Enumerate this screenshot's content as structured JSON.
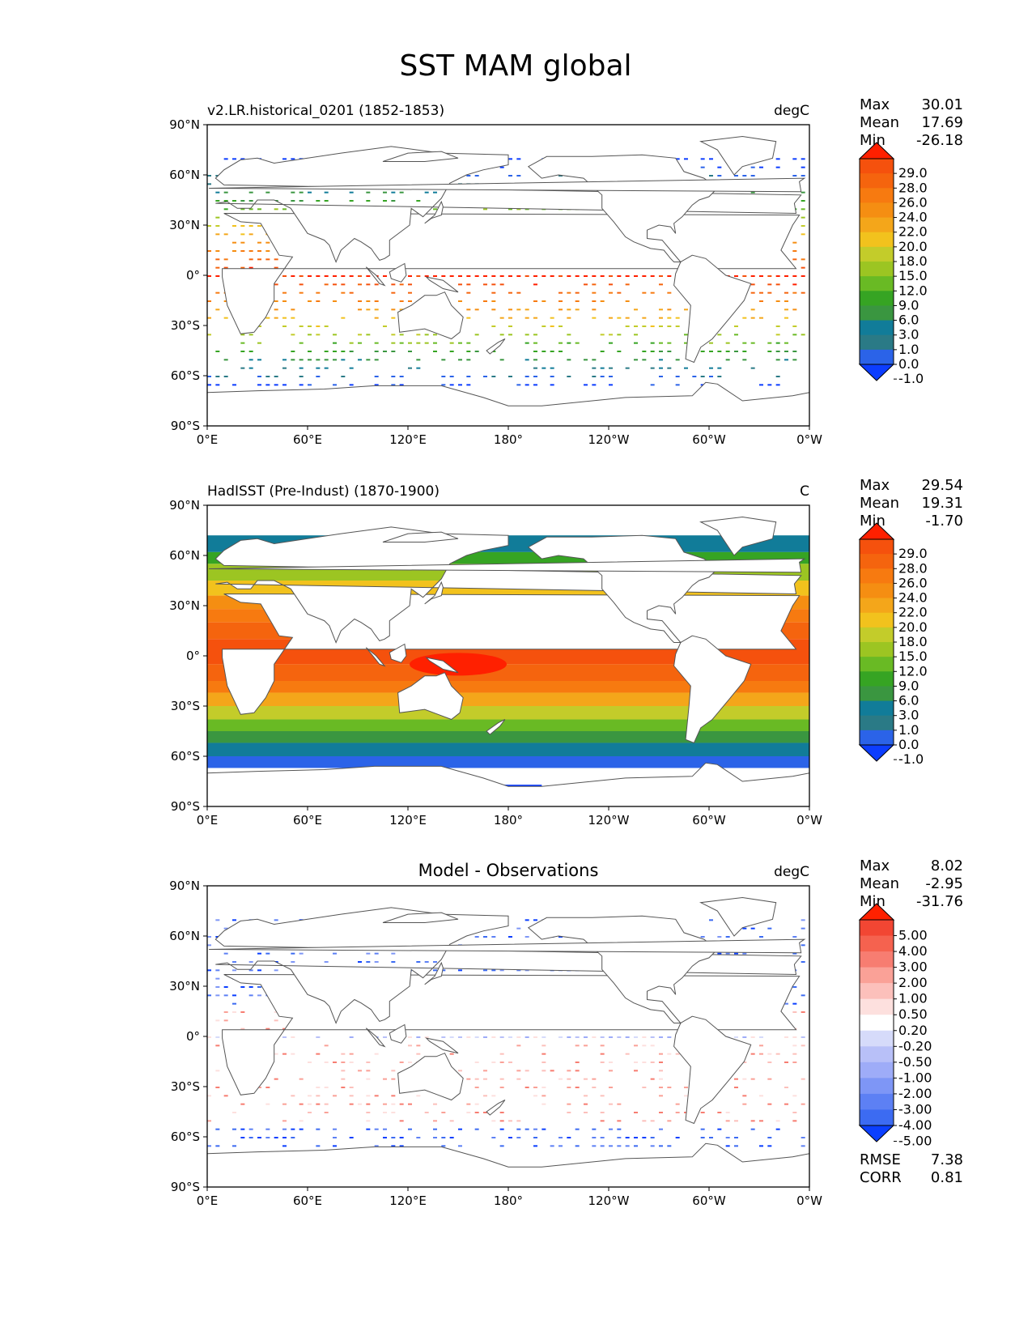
{
  "title": "SST MAM global",
  "x_ticks": [
    "0°E",
    "60°E",
    "120°E",
    "180°",
    "120°W",
    "60°W",
    "0°W"
  ],
  "y_ticks": [
    "90°N",
    "60°N",
    "30°N",
    "0°",
    "30°S",
    "60°S",
    "90°S"
  ],
  "colors": {
    "abs": [
      "#0c3dff",
      "#2b63e8",
      "#2a7a86",
      "#117c99",
      "#3a9640",
      "#36a423",
      "#69ba24",
      "#9cc522",
      "#c3cc2a",
      "#f2c21d",
      "#f4a61a",
      "#f58e12",
      "#f77a10",
      "#f5640e",
      "#f5510d",
      "#ff2000"
    ],
    "diff": [
      "#0b3fff",
      "#3c6bf2",
      "#5d80f4",
      "#7e96f6",
      "#9eacf8",
      "#b8c0f8",
      "#d6dbfa",
      "#ffffff",
      "#fde0de",
      "#fcc0bb",
      "#faa197",
      "#f77d71",
      "#f5624f",
      "#f24633",
      "#ff2100"
    ],
    "land_line": "#555555"
  },
  "panels": [
    {
      "id": "model",
      "left_title": "v2.LR.historical_0201 (1852-1853)",
      "center_title": "",
      "units": "degC",
      "stats": [
        {
          "label": "Max",
          "value": "30.01"
        },
        {
          "label": "Mean",
          "value": "17.69"
        },
        {
          "label": "Min",
          "value": "-26.18"
        }
      ],
      "colorbar_type": "abs",
      "colorbar_labels": [
        "29.0",
        "28.0",
        "26.0",
        "24.0",
        "22.0",
        "20.0",
        "18.0",
        "15.0",
        "12.0",
        "9.0",
        "6.0",
        "3.0",
        "1.0",
        "0.0",
        "-1.0"
      ],
      "footer": []
    },
    {
      "id": "obs",
      "left_title": "HadISST (Pre-Indust) (1870-1900)",
      "center_title": "",
      "units": "C",
      "stats": [
        {
          "label": "Max",
          "value": "29.54"
        },
        {
          "label": "Mean",
          "value": "19.31"
        },
        {
          "label": "Min",
          "value": "-1.70"
        }
      ],
      "colorbar_type": "abs",
      "colorbar_labels": [
        "29.0",
        "28.0",
        "26.0",
        "24.0",
        "22.0",
        "20.0",
        "18.0",
        "15.0",
        "12.0",
        "9.0",
        "6.0",
        "3.0",
        "1.0",
        "0.0",
        "-1.0"
      ],
      "footer": []
    },
    {
      "id": "diff",
      "left_title": "",
      "center_title": "Model - Observations",
      "units": "degC",
      "stats": [
        {
          "label": "Max",
          "value": "8.02"
        },
        {
          "label": "Mean",
          "value": "-2.95"
        },
        {
          "label": "Min",
          "value": "-31.76"
        }
      ],
      "colorbar_type": "diff",
      "colorbar_labels": [
        "5.00",
        "4.00",
        "3.00",
        "2.00",
        "1.00",
        "0.50",
        "0.20",
        "-0.20",
        "-0.50",
        "-1.00",
        "-2.00",
        "-3.00",
        "-4.00",
        "-5.00"
      ],
      "footer": [
        {
          "label": "RMSE",
          "value": "7.38"
        },
        {
          "label": "CORR",
          "value": "0.81"
        }
      ]
    }
  ],
  "chart_data": {
    "type": "heatmap",
    "title": "SST MAM global",
    "projection": "PlateCarree, central longitude 180",
    "xlim": [
      0,
      360
    ],
    "ylim": [
      -90,
      90
    ],
    "panels": [
      {
        "name": "v2.LR.historical_0201 (1852-1853)",
        "units": "degC",
        "max": 30.01,
        "mean": 17.69,
        "min": -26.18,
        "contour_levels": [
          -1.0,
          0.0,
          1.0,
          3.0,
          6.0,
          9.0,
          12.0,
          15.0,
          18.0,
          20.0,
          22.0,
          24.0,
          26.0,
          28.0,
          29.0
        ]
      },
      {
        "name": "HadISST (Pre-Indust) (1870-1900)",
        "units": "C",
        "max": 29.54,
        "mean": 19.31,
        "min": -1.7,
        "contour_levels": [
          -1.0,
          0.0,
          1.0,
          3.0,
          6.0,
          9.0,
          12.0,
          15.0,
          18.0,
          20.0,
          22.0,
          24.0,
          26.0,
          28.0,
          29.0
        ]
      },
      {
        "name": "Model - Observations",
        "units": "degC",
        "max": 8.02,
        "mean": -2.95,
        "min": -31.76,
        "rmse": 7.38,
        "corr": 0.81,
        "contour_levels": [
          -5.0,
          -4.0,
          -3.0,
          -2.0,
          -1.0,
          -0.5,
          -0.2,
          0.2,
          0.5,
          1.0,
          2.0,
          3.0,
          4.0,
          5.0
        ]
      }
    ]
  }
}
